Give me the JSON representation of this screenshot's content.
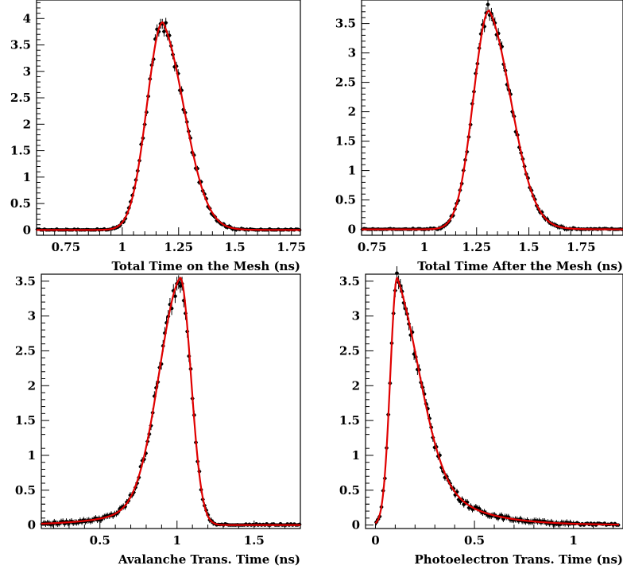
{
  "colors": {
    "data": "#000000",
    "fit": "#e00000",
    "frame": "#000000"
  },
  "chart_data": [
    {
      "type": "scatter",
      "title": "",
      "xlabel": "Total Time on the Mesh (ns)",
      "ylabel": "",
      "xlim": [
        0.62,
        1.79
      ],
      "ylim": [
        -0.1,
        4.35
      ],
      "x_ticks": [
        0.75,
        1,
        1.25,
        1.5,
        1.75
      ],
      "x_tick_labels": [
        "0.75",
        "1",
        "1.25",
        "1.5",
        "1.75"
      ],
      "y_ticks": [
        0,
        0.5,
        1,
        1.5,
        2,
        2.5,
        3,
        3.5,
        4
      ],
      "y_tick_labels": [
        "0",
        "0.5",
        "1",
        "1.5",
        "2",
        "2.5",
        "3",
        "3.5",
        "4"
      ],
      "series": [
        {
          "kind": "points_with_errors",
          "x_range": [
            0.9,
            1.68
          ],
          "peak_x": 1.18,
          "peak_y": 3.95,
          "error": 0.1
        },
        {
          "kind": "fit_curve",
          "peak_x": 1.18,
          "peak_y": 3.93
        }
      ],
      "profile": {
        "mu": 1.18,
        "amp": 3.93,
        "sigma_left": 0.07,
        "sigma_right": 0.1,
        "tail": 0.07,
        "x_start": 0.62,
        "x_end": 1.79
      }
    },
    {
      "type": "scatter",
      "title": "",
      "xlabel": "Total Time After the Mesh (ns)",
      "ylabel": "",
      "xlim": [
        0.7,
        1.95
      ],
      "ylim": [
        -0.1,
        3.9
      ],
      "x_ticks": [
        0.75,
        1,
        1.25,
        1.5,
        1.75
      ],
      "x_tick_labels": [
        "0.75",
        "1",
        "1.25",
        "1.5",
        "1.75"
      ],
      "y_ticks": [
        0,
        0.5,
        1,
        1.5,
        2,
        2.5,
        3,
        3.5
      ],
      "y_tick_labels": [
        "0",
        "0.5",
        "1",
        "1.5",
        "2",
        "2.5",
        "3",
        "3.5"
      ],
      "series": [
        {
          "kind": "points_with_errors",
          "x_range": [
            1.04,
            1.93
          ],
          "peak_x": 1.31,
          "peak_y": 3.78,
          "error": 0.1
        },
        {
          "kind": "fit_curve",
          "peak_x": 1.31,
          "peak_y": 3.72
        }
      ],
      "profile": {
        "mu": 1.31,
        "amp": 3.72,
        "sigma_left": 0.075,
        "sigma_right": 0.11,
        "tail": 0.09,
        "x_start": 0.7,
        "x_end": 1.95
      }
    },
    {
      "type": "scatter",
      "title": "",
      "xlabel": "Avalanche Trans. Time (ns)",
      "ylabel": "",
      "xlim": [
        0.12,
        1.8
      ],
      "ylim": [
        -0.05,
        3.6
      ],
      "x_ticks": [
        0.5,
        1,
        1.5
      ],
      "x_tick_labels": [
        "0.5",
        "1",
        "1.5"
      ],
      "y_ticks": [
        0,
        0.5,
        1,
        1.5,
        2,
        2.5,
        3,
        3.5
      ],
      "y_tick_labels": [
        "0",
        "0.5",
        "1",
        "1.5",
        "2",
        "2.5",
        "3",
        "3.5"
      ],
      "series": [
        {
          "kind": "points_with_errors",
          "x_range": [
            0.25,
            1.32
          ],
          "peak_x": 1.02,
          "peak_y": 3.45,
          "error": 0.1
        },
        {
          "kind": "fit_curve",
          "peak_x": 1.02,
          "peak_y": 3.55
        }
      ],
      "profile": {
        "mu": 1.02,
        "amp": 3.55,
        "sigma_left": 0.14,
        "sigma_right": 0.07,
        "tail_left": 0.25,
        "x_start": 0.12,
        "x_end": 1.8
      }
    },
    {
      "type": "scatter",
      "title": "",
      "xlabel": "Photoelectron Trans. Time (ns)",
      "ylabel": "",
      "xlim": [
        -0.05,
        1.25
      ],
      "ylim": [
        -0.05,
        3.6
      ],
      "x_ticks": [
        0,
        0.5,
        1
      ],
      "x_tick_labels": [
        "0",
        "0.5",
        "1"
      ],
      "y_ticks": [
        0,
        0.5,
        1,
        1.5,
        2,
        2.5,
        3,
        3.5
      ],
      "y_tick_labels": [
        "0",
        "0.5",
        "1",
        "1.5",
        "2",
        "2.5",
        "3",
        "3.5"
      ],
      "series": [
        {
          "kind": "points_with_errors",
          "x_range": [
            0.0,
            1.22
          ],
          "peak_x": 0.12,
          "peak_y": 3.55,
          "error": 0.1
        },
        {
          "kind": "fit_curve",
          "peak_x": 0.11,
          "peak_y": 3.55
        }
      ],
      "profile": {
        "mu": 0.11,
        "amp": 3.55,
        "rise": 0.035,
        "decay": 0.2,
        "x_start": 0.0,
        "x_end": 1.23
      }
    }
  ]
}
